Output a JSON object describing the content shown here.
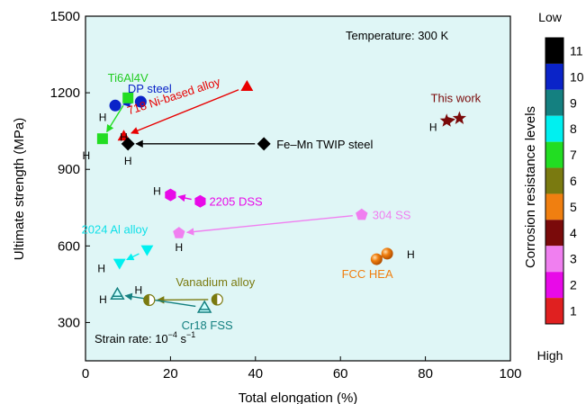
{
  "chart_data": {
    "type": "scatter",
    "title": "",
    "xlabel": "Total elongation (%)",
    "ylabel": "Ultimate strength (MPa)",
    "xlim": [
      0,
      100
    ],
    "ylim": [
      150,
      1500
    ],
    "x_ticks": [
      "0",
      "20",
      "40",
      "60",
      "80",
      "100"
    ],
    "y_ticks": [
      "300",
      "600",
      "900",
      "1200",
      "1500"
    ],
    "x_tick_values": [
      0,
      20,
      40,
      60,
      80,
      100
    ],
    "y_tick_values": [
      300,
      600,
      900,
      1200,
      1500
    ],
    "grid": false,
    "plot_background": "#dff6f6",
    "annotations": {
      "temperature": "Temperature: 300 K",
      "strain_rate_prefix": "Strain rate: 10",
      "strain_rate_exp1": "−4",
      "strain_rate_mid": " s",
      "strain_rate_exp2": "−1",
      "h_marker": "H"
    },
    "colorbar": {
      "label": "Corrosion resistance levels",
      "top_label": "Low",
      "bottom_label": "High",
      "levels": [
        {
          "level": "11",
          "color": "#000000"
        },
        {
          "level": "10",
          "color": "#0a23c8"
        },
        {
          "level": "9",
          "color": "#148080"
        },
        {
          "level": "8",
          "color": "#00f0f0"
        },
        {
          "level": "7",
          "color": "#22dd22"
        },
        {
          "level": "6",
          "color": "#7a7a10"
        },
        {
          "level": "5",
          "color": "#f07f10"
        },
        {
          "level": "4",
          "color": "#7a0a0a"
        },
        {
          "level": "3",
          "color": "#f07ff0"
        },
        {
          "level": "2",
          "color": "#e80ae8"
        },
        {
          "level": "1",
          "color": "#e02020"
        }
      ]
    },
    "series": [
      {
        "name": "Ti6Al4V",
        "color": "#22dd22",
        "marker": "square",
        "points": [
          {
            "x": 10,
            "y": 1180
          },
          {
            "x": 4,
            "y": 1020
          }
        ],
        "label_color": "#22cc22"
      },
      {
        "name": "DP steel",
        "color": "#0a23c8",
        "marker": "circle",
        "points": [
          {
            "x": 13,
            "y": 1165
          },
          {
            "x": 7,
            "y": 1150
          }
        ],
        "label_color": "#0a23c8"
      },
      {
        "name": "718 Ni-based alloy",
        "color": "#e80000",
        "marker": "triangle",
        "points": [
          {
            "x": 38,
            "y": 1225
          },
          {
            "x": 9,
            "y": 1030
          }
        ],
        "label_color": "#e80000"
      },
      {
        "name": "Fe–Mn TWIP steel",
        "color": "#000000",
        "marker": "diamond",
        "points": [
          {
            "x": 42,
            "y": 1000
          },
          {
            "x": 10,
            "y": 1000
          }
        ],
        "label_color": "#000000"
      },
      {
        "name": "This work",
        "color": "#7a0a0a",
        "marker": "star",
        "points": [
          {
            "x": 88,
            "y": 1100
          },
          {
            "x": 85,
            "y": 1090
          }
        ],
        "label_color": "#7a0a0a"
      },
      {
        "name": "2205 DSS",
        "color": "#e80ae8",
        "marker": "hexagon",
        "points": [
          {
            "x": 27,
            "y": 775
          },
          {
            "x": 20,
            "y": 800
          }
        ],
        "label_color": "#e80ae8"
      },
      {
        "name": "304 SS",
        "color": "#f07ff0",
        "marker": "pentagon",
        "points": [
          {
            "x": 65,
            "y": 722
          },
          {
            "x": 22,
            "y": 650
          }
        ],
        "label_color": "#f07ff0"
      },
      {
        "name": "2024 Al alloy",
        "color": "#00f0f0",
        "marker": "triangle-down",
        "points": [
          {
            "x": 14.5,
            "y": 585
          },
          {
            "x": 8,
            "y": 532
          }
        ],
        "label_color": "#10e0e8"
      },
      {
        "name": "FCC HEA",
        "color": "#f07f10",
        "marker": "sphere",
        "points": [
          {
            "x": 71,
            "y": 570
          },
          {
            "x": 68.5,
            "y": 548
          }
        ],
        "label_color": "#f07f10"
      },
      {
        "name": "Vanadium alloy",
        "color": "#7a7a10",
        "marker": "half-circle",
        "points": [
          {
            "x": 31,
            "y": 390
          },
          {
            "x": 15,
            "y": 388
          }
        ],
        "label_color": "#7a7a10"
      },
      {
        "name": "Cr18 FSS",
        "color": "#148080",
        "marker": "triangle-half",
        "points": [
          {
            "x": 28,
            "y": 358
          },
          {
            "x": 7.5,
            "y": 410
          }
        ],
        "label_color": "#148080"
      }
    ]
  }
}
